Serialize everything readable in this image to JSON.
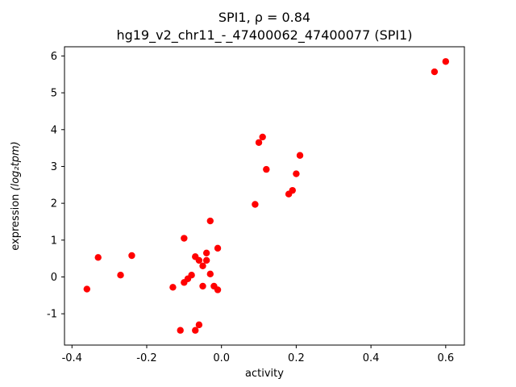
{
  "figure": {
    "title_line1": "SPI1, ρ = 0.84",
    "title_line2": "hg19_v2_chr11_-_47400062_47400077 (SPI1)",
    "xlabel": "activity",
    "ylabel_prefix": "expression ",
    "ylabel_math": "(log₂tpm)"
  },
  "chart_data": {
    "type": "scatter",
    "title": "SPI1, ρ = 0.84",
    "subtitle": "hg19_v2_chr11_-_47400062_47400077 (SPI1)",
    "xlabel": "activity",
    "ylabel": "expression (log₂tpm)",
    "legend": null,
    "grid": false,
    "marker_color": "#ff0000",
    "xlim": [
      -0.42,
      0.65
    ],
    "ylim": [
      -1.85,
      6.25
    ],
    "xticks": [
      -0.4,
      -0.2,
      0.0,
      0.2,
      0.4,
      0.6
    ],
    "xtick_labels": [
      "-0.4",
      "-0.2",
      "0.0",
      "0.2",
      "0.4",
      "0.6"
    ],
    "yticks": [
      -1,
      0,
      1,
      2,
      3,
      4,
      5,
      6
    ],
    "ytick_labels": [
      "-1",
      "0",
      "1",
      "2",
      "3",
      "4",
      "5",
      "6"
    ],
    "points": [
      [
        -0.36,
        -0.33
      ],
      [
        -0.33,
        0.53
      ],
      [
        -0.27,
        0.05
      ],
      [
        -0.24,
        0.58
      ],
      [
        -0.13,
        -0.28
      ],
      [
        -0.11,
        -1.45
      ],
      [
        -0.1,
        1.05
      ],
      [
        -0.1,
        -0.15
      ],
      [
        -0.09,
        -0.05
      ],
      [
        -0.08,
        0.05
      ],
      [
        -0.07,
        -1.45
      ],
      [
        -0.07,
        0.55
      ],
      [
        -0.06,
        0.45
      ],
      [
        -0.06,
        -1.3
      ],
      [
        -0.05,
        0.3
      ],
      [
        -0.05,
        -0.25
      ],
      [
        -0.04,
        0.65
      ],
      [
        -0.04,
        0.45
      ],
      [
        -0.03,
        1.52
      ],
      [
        -0.03,
        0.08
      ],
      [
        -0.02,
        -0.25
      ],
      [
        -0.01,
        0.78
      ],
      [
        -0.01,
        -0.35
      ],
      [
        0.09,
        1.97
      ],
      [
        0.1,
        3.65
      ],
      [
        0.11,
        3.8
      ],
      [
        0.12,
        2.92
      ],
      [
        0.18,
        2.25
      ],
      [
        0.19,
        2.35
      ],
      [
        0.2,
        2.8
      ],
      [
        0.21,
        3.3
      ],
      [
        0.57,
        5.57
      ],
      [
        0.6,
        5.85
      ]
    ]
  }
}
